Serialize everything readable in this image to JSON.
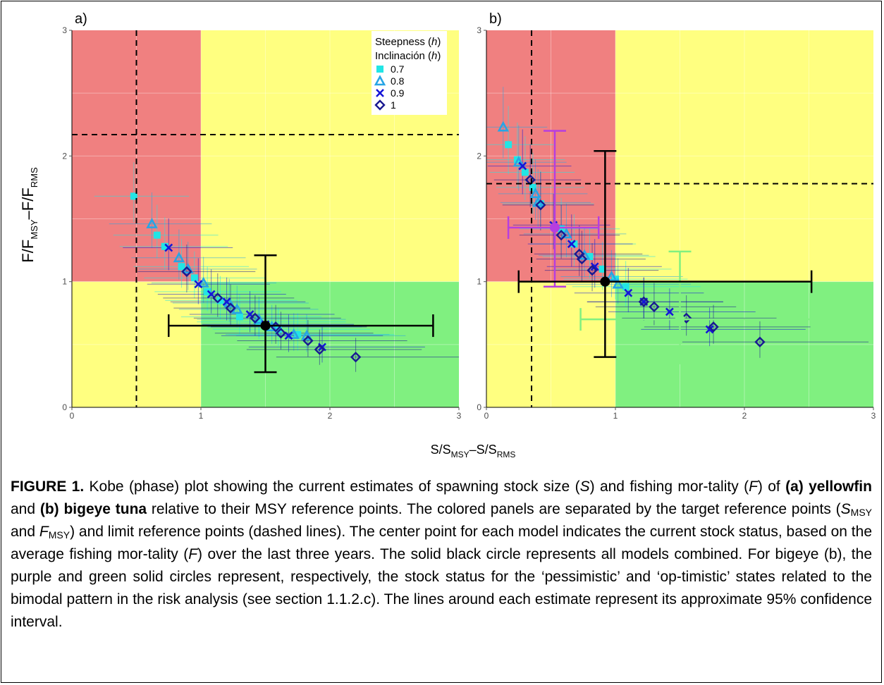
{
  "x_label": {
    "base": "S/S",
    "sub1": "MSY",
    "mid": "–S/S",
    "sub2": "RMS"
  },
  "y_label": {
    "base": "F/F",
    "sub1": "MSY",
    "mid": "–F/F",
    "sub2": "RMS"
  },
  "legend": {
    "title1": "Steepness (",
    "title1_h": "h",
    "title1_end": ")",
    "title2": "Inclinación (",
    "title2_h": "h",
    "title2_end": ")",
    "items": [
      {
        "label": "0.7",
        "color": "#22e5e5",
        "shape": "square"
      },
      {
        "label": "0.8",
        "color": "#27a5e5",
        "shape": "triangle"
      },
      {
        "label": "0.9",
        "color": "#1515d8",
        "shape": "cross"
      },
      {
        "label": "1",
        "color": "#191991",
        "shape": "diamond"
      }
    ]
  },
  "colors": {
    "red": "#f08080",
    "yellow": "#ffff80",
    "green": "#80f080",
    "black": "#000000",
    "purple": "#b63ee0",
    "green_dark": "#2a7e1e"
  },
  "chart_data": [
    {
      "type": "scatter",
      "panel_label": "a)",
      "xlim": [
        0,
        3
      ],
      "ylim": [
        0,
        3
      ],
      "x_ticks": [
        "0",
        "1",
        "2",
        "3"
      ],
      "y_ticks": [
        "0",
        "1",
        "2",
        "3"
      ],
      "grid": true,
      "target_ref": {
        "x": 1,
        "y": 1
      },
      "limit_ref": {
        "x": 0.5,
        "y": 2.17
      },
      "series": [
        {
          "name": "0.7",
          "points": [
            [
              0.48,
              1.68
            ],
            [
              0.66,
              1.37
            ],
            [
              0.72,
              1.28
            ],
            [
              0.85,
              1.12
            ],
            [
              0.95,
              1.03
            ],
            [
              1.05,
              0.92
            ],
            [
              1.15,
              0.85
            ],
            [
              1.3,
              0.72
            ],
            [
              1.45,
              0.68
            ],
            [
              1.6,
              0.62
            ],
            [
              1.75,
              0.58
            ]
          ]
        },
        {
          "name": "0.8",
          "points": [
            [
              0.62,
              1.46
            ],
            [
              0.83,
              1.19
            ],
            [
              0.9,
              1.1
            ],
            [
              1.02,
              0.99
            ],
            [
              1.22,
              0.83
            ],
            [
              1.28,
              0.78
            ],
            [
              1.45,
              0.7
            ],
            [
              1.55,
              0.64
            ],
            [
              1.72,
              0.58
            ],
            [
              1.82,
              0.57
            ]
          ]
        },
        {
          "name": "0.9",
          "points": [
            [
              0.75,
              1.27
            ],
            [
              0.98,
              0.98
            ],
            [
              1.08,
              0.9
            ],
            [
              1.2,
              0.84
            ],
            [
              1.38,
              0.74
            ],
            [
              1.5,
              0.66
            ],
            [
              1.68,
              0.57
            ],
            [
              1.94,
              0.48
            ]
          ]
        },
        {
          "name": "1",
          "points": [
            [
              0.89,
              1.08
            ],
            [
              1.13,
              0.87
            ],
            [
              1.23,
              0.79
            ],
            [
              1.42,
              0.71
            ],
            [
              1.58,
              0.64
            ],
            [
              1.62,
              0.59
            ],
            [
              1.83,
              0.53
            ],
            [
              1.92,
              0.46
            ],
            [
              2.2,
              0.4
            ]
          ]
        }
      ],
      "combined": {
        "x": 1.5,
        "y": 0.65,
        "xerr": [
          0.75,
          2.8
        ],
        "yerr": [
          0.28,
          1.21
        ],
        "color": "black"
      }
    },
    {
      "type": "scatter",
      "panel_label": "b)",
      "xlim": [
        0,
        3
      ],
      "ylim": [
        0,
        3
      ],
      "x_ticks": [
        "0",
        "1",
        "2",
        "3"
      ],
      "y_ticks": [
        "0",
        "1",
        "2",
        "3"
      ],
      "grid": true,
      "target_ref": {
        "x": 1,
        "y": 1
      },
      "limit_ref": {
        "x": 0.35,
        "y": 1.78
      },
      "series": [
        {
          "name": "0.7",
          "points": [
            [
              0.17,
              2.09
            ],
            [
              0.24,
              1.97
            ],
            [
              0.3,
              1.87
            ],
            [
              0.36,
              1.75
            ],
            [
              0.42,
              1.62
            ],
            [
              0.58,
              1.42
            ],
            [
              0.68,
              1.3
            ],
            [
              0.8,
              1.2
            ],
            [
              0.9,
              1.1
            ],
            [
              1.0,
              1.02
            ],
            [
              1.08,
              0.96
            ]
          ]
        },
        {
          "name": "0.8",
          "points": [
            [
              0.13,
              2.23
            ],
            [
              0.25,
              1.95
            ],
            [
              0.38,
              1.7
            ],
            [
              0.4,
              1.63
            ],
            [
              0.62,
              1.38
            ],
            [
              0.76,
              1.21
            ],
            [
              0.97,
              1.04
            ],
            [
              1.02,
              0.98
            ]
          ]
        },
        {
          "name": "0.9",
          "points": [
            [
              0.28,
              1.92
            ],
            [
              0.52,
              1.45
            ],
            [
              0.66,
              1.3
            ],
            [
              0.84,
              1.12
            ],
            [
              1.1,
              0.91
            ],
            [
              1.22,
              0.84
            ],
            [
              1.42,
              0.76
            ],
            [
              1.73,
              0.62
            ]
          ]
        },
        {
          "name": "1",
          "points": [
            [
              0.34,
              1.81
            ],
            [
              0.42,
              1.61
            ],
            [
              0.58,
              1.37
            ],
            [
              0.72,
              1.22
            ],
            [
              0.74,
              1.18
            ],
            [
              0.82,
              1.09
            ],
            [
              1.22,
              0.84
            ],
            [
              1.3,
              0.8
            ],
            [
              1.55,
              0.71
            ],
            [
              1.76,
              0.64
            ],
            [
              2.12,
              0.52
            ]
          ]
        }
      ],
      "combined": {
        "x": 0.92,
        "y": 1.0,
        "xerr": [
          0.25,
          2.52
        ],
        "yerr": [
          0.4,
          2.04
        ],
        "color": "black"
      },
      "pessimistic": {
        "x": 0.53,
        "y": 1.43,
        "xerr": [
          0.17,
          0.87
        ],
        "yerr": [
          0.96,
          2.2
        ],
        "color": "purple"
      },
      "optimistic": {
        "x": 1.5,
        "y": 0.7,
        "xerr": [
          0.73,
          2.7
        ],
        "yerr": [
          0.35,
          1.24
        ],
        "color": "green"
      }
    }
  ],
  "caption": {
    "figure_label": "FIGURE 1.",
    "t1": " Kobe (phase) plot showing the current estimates of spawning stock size (",
    "S": "S",
    "t2": ") and fishing mor-tality (",
    "F": "F",
    "t3": ") of ",
    "b1": "(a) yellowfin",
    "t4": " and ",
    "b2": "(b) bigeye tuna",
    "t5": " relative to their MSY reference points. The colored panels are separated by the target reference points (",
    "S2": "S",
    "msy1": "MSY",
    "t6": " and ",
    "F2": "F",
    "msy2": "MSY",
    "t7": ") and limit reference points (dashed lines). The center point for each model indicates the current stock status, based on the average fishing mor-tality (",
    "F3": "F",
    "t8": ") over the last three years. The solid black circle represents all models combined. For bigeye (b), the purple and green solid circles represent, respectively, the stock status for the ‘pessimistic’ and ‘op-timistic’ states related to the bimodal pattern in the risk analysis (see section 1.1.2.c). The lines around each estimate represent its approximate 95% confidence interval."
  }
}
